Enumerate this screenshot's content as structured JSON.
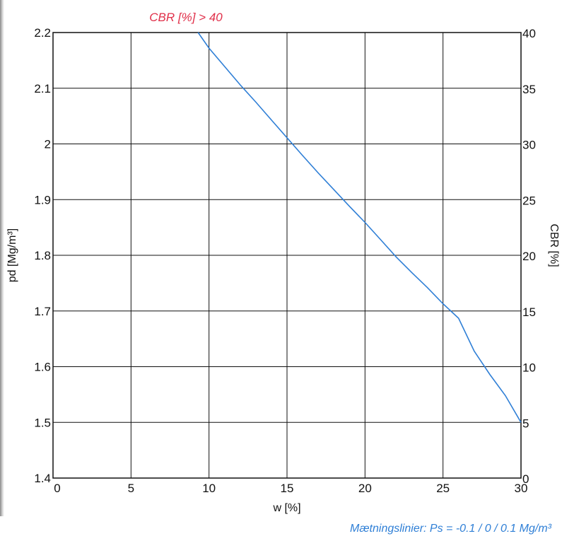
{
  "chart_data": {
    "type": "line",
    "xlabel": "w [%]",
    "ylabel": "pd [Mg/m³]",
    "y2label": "CBR [%]",
    "xlim": [
      0,
      30
    ],
    "ylim": [
      1.4,
      2.2
    ],
    "y2lim": [
      0,
      40
    ],
    "x_ticks": [
      "0",
      "5",
      "10",
      "15",
      "20",
      "25",
      "30"
    ],
    "y_ticks": [
      "1.4",
      "1.5",
      "1.6",
      "1.7",
      "1.8",
      "1.9",
      "2",
      "2.1",
      "2.2"
    ],
    "y2_ticks": [
      "0",
      "5",
      "10",
      "15",
      "20",
      "25",
      "30",
      "35",
      "40"
    ],
    "grid": true,
    "series": [
      {
        "color": "#2f7fd6",
        "x": [
          9.3,
          10,
          11,
          12,
          13,
          14,
          15,
          16,
          17,
          18,
          19,
          20,
          21,
          22,
          23,
          24,
          25,
          26,
          27,
          28,
          29,
          30
        ],
        "y": [
          2.2,
          2.172,
          2.139,
          2.106,
          2.075,
          2.043,
          2.011,
          1.979,
          1.948,
          1.918,
          1.888,
          1.859,
          1.828,
          1.797,
          1.769,
          1.742,
          1.713,
          1.687,
          1.628,
          1.586,
          1.548,
          1.5
        ]
      }
    ],
    "annotations": {
      "cbr_note": "CBR [%] > 40",
      "cbr_note_color": "#e0304a",
      "saturation_note": "Mætningslinier: Ps = -0.1 / 0 / 0.1 Mg/m³",
      "saturation_note_color": "#2f7fd6"
    }
  }
}
